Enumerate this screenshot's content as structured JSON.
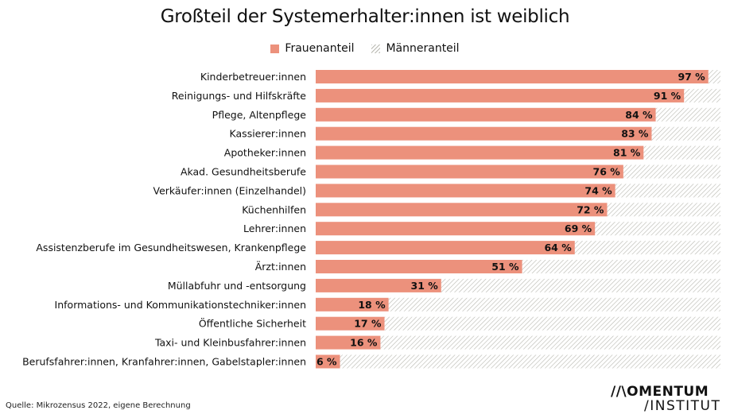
{
  "chart_data": {
    "type": "bar",
    "orientation": "horizontal",
    "stacked": true,
    "title": "Großteil der Systemerhalter:innen ist weiblich",
    "legend": {
      "placement": "top-center",
      "entries": [
        "Frauenanteil",
        "Männeranteil"
      ]
    },
    "categories": [
      "Kinderbetreuer:innen",
      "Reinigungs- und Hilfskräfte",
      "Pflege, Altenpflege",
      "Kassierer:innen",
      "Apotheker:innen",
      "Akad. Gesundheitsberufe",
      "Verkäufer:innen (Einzelhandel)",
      "Küchenhilfen",
      "Lehrer:innen",
      "Assistenzberufe im Gesundheitswesen, Krankenpflege",
      "Ärzt:innen",
      "Müllabfuhr und -entsorgung",
      "Informations- und Kommunikationstechniker:innen",
      "Öffentliche Sicherheit",
      "Taxi- und Kleinbusfahrer:innen",
      "Berufsfahrer:innen, Kranfahrer:innen, Gabelstapler:innen"
    ],
    "series": [
      {
        "name": "Frauenanteil",
        "color": "#ec917c",
        "values": [
          97,
          91,
          84,
          83,
          81,
          76,
          74,
          72,
          69,
          64,
          51,
          31,
          18,
          17,
          16,
          6
        ]
      },
      {
        "name": "Männeranteil",
        "color": "#b8b8b0",
        "pattern": "diagonal-hatch",
        "values": [
          3,
          9,
          16,
          17,
          19,
          24,
          26,
          28,
          31,
          36,
          49,
          69,
          82,
          83,
          84,
          94
        ]
      }
    ],
    "value_labels": [
      "97 %",
      "91 %",
      "84 %",
      "83 %",
      "81 %",
      "76 %",
      "74 %",
      "72 %",
      "69 %",
      "64 %",
      "51 %",
      "31 %",
      "18 %",
      "17 %",
      "16 %",
      "6 %"
    ],
    "xlim": [
      0,
      100
    ],
    "grid": false
  },
  "source": "Quelle: Mikrozensus 2022, eigene Berechnung",
  "logo": {
    "line1": "//\\OMENTUM",
    "line2": "/INSTITUT"
  }
}
